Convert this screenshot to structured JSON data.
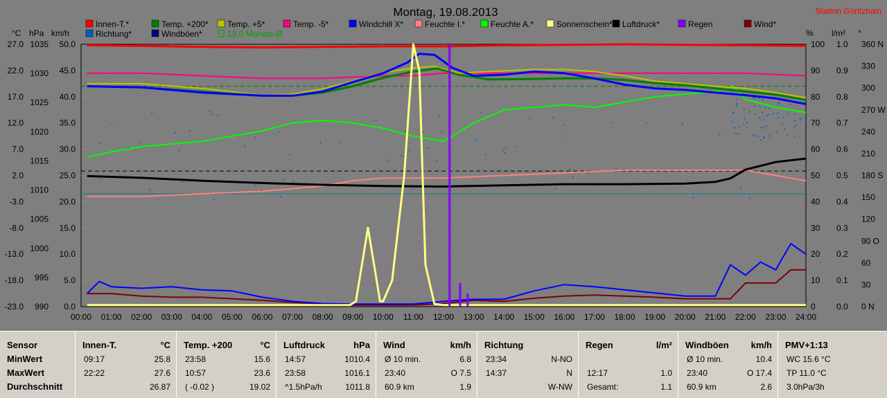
{
  "chart_data": {
    "type": "line",
    "title": "Montag, 19.08.2013",
    "station": "Station Göritzhain",
    "x_ticks": [
      "00:00",
      "01:00",
      "02:00",
      "03:00",
      "04:00",
      "05:00",
      "06:00",
      "07:00",
      "08:00",
      "09:00",
      "10:00",
      "11:00",
      "12:00",
      "13:00",
      "14:00",
      "15:00",
      "16:00",
      "17:00",
      "18:00",
      "19:00",
      "20:00",
      "21:00",
      "22:00",
      "23:00",
      "24:00"
    ],
    "xlim": [
      0,
      24
    ],
    "axes": {
      "temp": {
        "unit": "°C",
        "ticks": [
          "27.0",
          "22.0",
          "17.0",
          "12.0",
          "7.0",
          "2.0",
          "-3.0",
          "-8.0",
          "-13.0",
          "-18.0",
          "-23.0"
        ],
        "range": [
          -23,
          27
        ]
      },
      "pressure": {
        "unit": "hPa",
        "ticks": [
          "1035",
          "1030",
          "1025",
          "1020",
          "1015",
          "1010",
          "1005",
          "1000",
          "995",
          "990"
        ],
        "range": [
          990,
          1035
        ]
      },
      "wind": {
        "unit": "km/h",
        "ticks": [
          "50.0",
          "45.0",
          "40.0",
          "35.0",
          "30.0",
          "25.0",
          "20.0",
          "15.0",
          "10.0",
          "5.0",
          "0.0"
        ],
        "range": [
          0,
          50
        ]
      },
      "humidity": {
        "unit": "%",
        "ticks": [
          "100",
          "90",
          "80",
          "70",
          "60",
          "50",
          "40",
          "30",
          "20",
          "10",
          "0"
        ],
        "range": [
          0,
          100
        ]
      },
      "rain": {
        "unit": "l/m²",
        "ticks": [
          "1.0",
          "0.9",
          "0.8",
          "0.7",
          "0.6",
          "0.5",
          "0.4",
          "0.3",
          "0.2",
          "0.1",
          "0.0"
        ],
        "range": [
          0,
          1
        ]
      },
      "direction": {
        "unit": "°",
        "ticks": [
          "360 N",
          "330",
          "300",
          "270 W",
          "240",
          "210",
          "180 S",
          "150",
          "120",
          "90 O",
          "60",
          "30",
          "0 N"
        ],
        "range": [
          0,
          360
        ]
      }
    },
    "legend": [
      {
        "name": "Innen-T.*",
        "color": "#ff0000"
      },
      {
        "name": "Temp. +200*",
        "color": "#008000"
      },
      {
        "name": "Temp. +5*",
        "color": "#c0c000"
      },
      {
        "name": "Temp. -5*",
        "color": "#ff0080"
      },
      {
        "name": "Windchill X*",
        "color": "#0000ff"
      },
      {
        "name": "Feuchte I.*",
        "color": "#ff8080"
      },
      {
        "name": "Feuchte A.*",
        "color": "#00ff00"
      },
      {
        "name": "Sonnenschein*",
        "color": "#ffff80"
      },
      {
        "name": "Luftdruck*",
        "color": "#000000"
      },
      {
        "name": "Regen",
        "color": "#8000ff"
      },
      {
        "name": "Wind*",
        "color": "#800000"
      },
      {
        "name": "Richtung*",
        "color": "#0060c0"
      },
      {
        "name": "Windböen*",
        "color": "#000080"
      },
      {
        "name": "19.0 Monats-Ø",
        "color": "#00a000"
      }
    ],
    "series": [
      {
        "name": "Innen-T.*",
        "axis": "temp",
        "color": "#ff0000",
        "width": 3,
        "x": [
          0.2,
          2,
          4,
          6,
          8,
          10,
          12,
          14,
          16,
          18,
          20,
          22,
          24
        ],
        "y": [
          26.8,
          26.7,
          26.5,
          26.4,
          26.5,
          26.6,
          26.6,
          26.8,
          26.9,
          27.0,
          26.9,
          26.8,
          26.7
        ]
      },
      {
        "name": "Temp. -5*",
        "axis": "temp",
        "color": "#ff0080",
        "width": 2,
        "x": [
          0.2,
          2,
          4,
          6,
          8,
          10,
          11,
          12,
          14,
          16,
          18,
          20,
          22,
          24
        ],
        "y": [
          21.5,
          21.5,
          21.0,
          20.5,
          20.5,
          21.0,
          21.0,
          21.5,
          21.5,
          21.5,
          21.5,
          21.5,
          21.5,
          21.0
        ]
      },
      {
        "name": "Temp. +5*",
        "axis": "temp",
        "color": "#c0c000",
        "width": 2,
        "x": [
          0.2,
          2,
          4,
          6,
          7,
          8,
          9,
          10,
          11,
          11.7,
          12.5,
          13.5,
          15,
          16,
          17,
          18,
          19,
          20,
          21,
          22,
          23,
          24
        ],
        "y": [
          19.5,
          19.5,
          18.6,
          17.3,
          17.5,
          18.5,
          20.0,
          21.6,
          22.5,
          22.8,
          21.5,
          21.8,
          22.2,
          22.2,
          21.8,
          21.0,
          20.0,
          19.5,
          19.0,
          18.6,
          17.8,
          16.8
        ]
      },
      {
        "name": "Temp. +200*",
        "axis": "temp",
        "color": "#008000",
        "width": 3,
        "x": [
          0.2,
          2,
          4,
          6,
          7,
          8,
          9,
          10,
          11,
          11.8,
          12.5,
          13.5,
          15,
          16,
          17,
          18,
          19,
          20,
          21,
          22,
          23,
          24
        ],
        "y": [
          19.0,
          18.8,
          18.0,
          17.2,
          17.2,
          17.8,
          19.0,
          20.6,
          21.8,
          22.4,
          21.2,
          20.3,
          20.4,
          20.5,
          20.5,
          20.2,
          19.6,
          19.2,
          18.6,
          18.0,
          17.4,
          16.4
        ]
      },
      {
        "name": "Windchill X*",
        "axis": "temp",
        "color": "#0000ff",
        "width": 3,
        "x": [
          0.2,
          2,
          4,
          6,
          7,
          8,
          9,
          10,
          10.8,
          11.2,
          11.7,
          12.3,
          13,
          14,
          15,
          16,
          17,
          18,
          19,
          20,
          21,
          22,
          23,
          24
        ],
        "y": [
          19.0,
          18.8,
          17.8,
          17.2,
          17.2,
          18.0,
          19.8,
          21.5,
          23.5,
          25.2,
          25.0,
          22.5,
          21.0,
          21.2,
          21.8,
          21.5,
          20.5,
          19.3,
          18.6,
          18.3,
          17.8,
          17.3,
          16.7,
          15.6
        ]
      },
      {
        "name": "Feuchte A.*",
        "axis": "humidity",
        "color": "#00ff00",
        "width": 2,
        "x": [
          0.2,
          1,
          2,
          3,
          4,
          5,
          6,
          7,
          8,
          9,
          10,
          11,
          12,
          13,
          14,
          15,
          16,
          17,
          18,
          19,
          20,
          21,
          21.6,
          22,
          23,
          24
        ],
        "y": [
          57,
          59,
          61,
          62,
          63,
          65,
          67,
          70,
          71,
          70,
          68,
          65,
          63,
          70,
          75,
          76,
          77,
          76,
          78,
          80,
          81,
          82,
          84,
          79,
          76,
          74
        ]
      },
      {
        "name": "Feuchte I.*",
        "axis": "humidity",
        "color": "#ff8080",
        "width": 2,
        "x": [
          0.2,
          2,
          4,
          6,
          8,
          9,
          10,
          12,
          14,
          16,
          18,
          20,
          22,
          24
        ],
        "y": [
          42,
          42,
          43,
          44,
          46,
          48,
          49,
          49,
          50,
          51,
          52,
          52,
          52,
          48
        ]
      },
      {
        "name": "Luftdruck*",
        "axis": "pressure",
        "color": "#000000",
        "width": 3,
        "x": [
          0.2,
          2,
          4,
          6,
          8,
          10,
          12,
          14,
          16,
          18,
          20,
          21,
          21.5,
          22,
          23,
          24
        ],
        "y": [
          1012.4,
          1012.1,
          1011.6,
          1011.2,
          1010.9,
          1010.7,
          1010.6,
          1010.8,
          1011.0,
          1011.0,
          1011.1,
          1011.4,
          1012.0,
          1013.5,
          1014.8,
          1015.4
        ]
      },
      {
        "name": "Sonnenschein*",
        "axis": "wind",
        "color": "#ffff80",
        "width": 3,
        "x": [
          0.2,
          8.9,
          9.1,
          9.5,
          9.9,
          10,
          10.3,
          10.7,
          11,
          11.2,
          11.4,
          11.7,
          12,
          12.5,
          24
        ],
        "y": [
          0.3,
          0.3,
          1,
          15,
          1,
          1,
          5,
          25,
          50,
          45,
          8,
          0.5,
          0.3,
          0.3,
          0.3
        ]
      },
      {
        "name": "Windböen*",
        "axis": "wind",
        "color": "#0000ff",
        "width": 2,
        "x": [
          0.2,
          0.6,
          1,
          2,
          3,
          4,
          5,
          6,
          7,
          8,
          9,
          10,
          11,
          12,
          13,
          14,
          15,
          16,
          17,
          18,
          19,
          20,
          21,
          21.5,
          22,
          22.5,
          23,
          23.5,
          24
        ],
        "y": [
          2.5,
          4.8,
          3.8,
          3.5,
          3.8,
          3.2,
          3.0,
          1.8,
          1.0,
          0.6,
          0.5,
          0.5,
          0.5,
          1.0,
          1.4,
          1.4,
          3.0,
          4.2,
          3.8,
          3.2,
          2.6,
          2.0,
          2.0,
          8,
          6,
          8.5,
          7,
          12,
          10
        ]
      },
      {
        "name": "Wind*",
        "axis": "wind",
        "color": "#800000",
        "width": 2,
        "x": [
          0.2,
          1,
          2,
          3,
          4,
          5,
          6,
          7,
          8,
          9,
          10,
          11,
          12,
          13,
          14,
          15,
          16,
          17,
          18,
          19,
          20,
          21,
          21.5,
          22,
          22.5,
          23,
          23.5,
          24
        ],
        "y": [
          2.5,
          2.5,
          2.0,
          1.8,
          1.8,
          1.5,
          1.2,
          0.8,
          0.5,
          0.3,
          0.3,
          0.3,
          0.6,
          1.2,
          1.0,
          1.6,
          2.0,
          2.2,
          2.0,
          1.8,
          1.5,
          1.5,
          1.5,
          4.5,
          4.5,
          4.5,
          7,
          7
        ]
      }
    ],
    "rain_bars": [
      {
        "x": 12.2,
        "value": 1.0
      },
      {
        "x": 12.55,
        "value": 0.09
      },
      {
        "x": 12.8,
        "value": 0.05
      }
    ],
    "ref_lines": [
      {
        "axis": "temp",
        "value": 19.0,
        "color": "#008000",
        "style": "dashed"
      },
      {
        "axis": "pressure",
        "value": 1013.25,
        "color": "#000000",
        "style": "dashed"
      },
      {
        "axis": "humidity",
        "value": 43,
        "color": "#008080",
        "style": "solid"
      }
    ]
  },
  "stats": {
    "row_labels": [
      "Sensor",
      "MinWert",
      "MaxWert",
      "Durchschnitt"
    ],
    "boxes": [
      {
        "title": "Innen-T.",
        "unit": "°C",
        "rows": [
          [
            "09:17",
            "25.8"
          ],
          [
            "22:22",
            "27.6"
          ],
          [
            "",
            "26.87"
          ]
        ]
      },
      {
        "title": "Temp. +200",
        "unit": "°C",
        "rows": [
          [
            "23:58",
            "15.6"
          ],
          [
            "10:57",
            "23.6"
          ],
          [
            "( -0.02 )",
            "19.02"
          ]
        ]
      },
      {
        "title": "Luftdruck",
        "unit": "hPa",
        "rows": [
          [
            "14:57",
            "1010.4"
          ],
          [
            "23:58",
            "1016.1"
          ],
          [
            "^1.5hPa/h",
            "1011.8"
          ]
        ]
      },
      {
        "title": "Wind",
        "unit": "km/h",
        "rows": [
          [
            "Ø 10 min.",
            "6.8"
          ],
          [
            "23:40",
            "O 7.5"
          ],
          [
            "60.9 km",
            "1.9"
          ]
        ]
      },
      {
        "title": "Richtung",
        "unit": "",
        "rows": [
          [
            "23:34",
            "N-NO"
          ],
          [
            "14:37",
            "N"
          ],
          [
            "",
            "W-NW"
          ]
        ]
      },
      {
        "title": "Regen",
        "unit": "l/m²",
        "rows": [
          [
            "",
            ""
          ],
          [
            "12:17",
            "1.0"
          ],
          [
            "Gesamt:",
            "1.1"
          ]
        ]
      },
      {
        "title": "Windböen",
        "unit": "km/h",
        "rows": [
          [
            "Ø 10 min.",
            "10.4"
          ],
          [
            "23:40",
            "O 17.4"
          ],
          [
            "60.9 km",
            "2.6"
          ]
        ]
      },
      {
        "title": "PMV+1:13",
        "unit": "",
        "rows": [
          [
            "WC 15.6 °C",
            ""
          ],
          [
            "TP 11.0 °C",
            ""
          ],
          [
            "3.0hPa/3h",
            ""
          ]
        ]
      }
    ]
  }
}
